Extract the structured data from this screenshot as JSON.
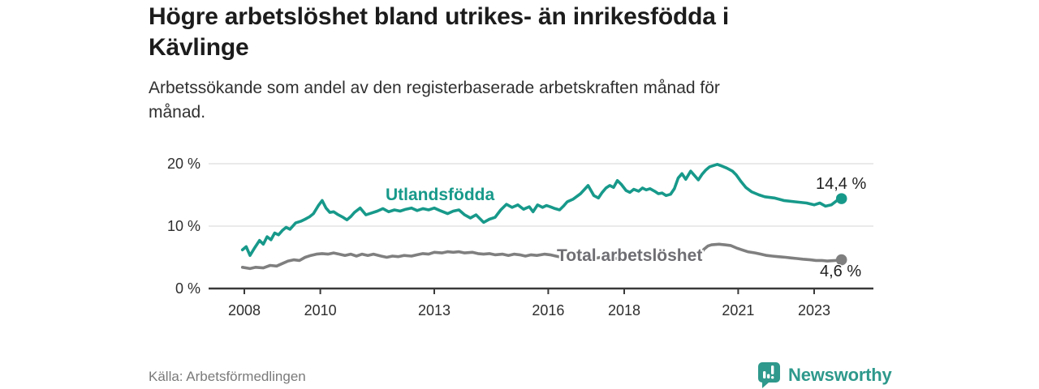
{
  "header": {
    "title_line1": "Högre arbetslöshet bland utrikes- än inrikesfödda i",
    "title_line2": "Kävlinge",
    "subtitle_line1": "Arbetssökande som andel av den registerbaserade arbetskraften månad för",
    "subtitle_line2": "månad."
  },
  "footer": {
    "source": "Källa: Arbetsförmedlingen",
    "brand_name": "Newsworthy"
  },
  "colors": {
    "foreign_line": "#17998a",
    "total_line": "#7f7f7f",
    "total_label_text": "#6e6e73",
    "axis": "#3a3a3a",
    "grid": "#e3e3e3",
    "tick_text": "#2e2e2e",
    "title_text": "#1c1c1c",
    "muted_text": "#7a7a7a",
    "brand_teal": "#2e998c"
  },
  "chart_data": {
    "type": "line",
    "title": "Högre arbetslöshet bland utrikes- än inrikesfödda i Kävlinge",
    "subtitle": "Arbetssökande som andel av den registerbaserade arbetskraften månad för månad.",
    "xlabel": "",
    "ylabel": "",
    "unit": "%",
    "grid": "horizontal",
    "legend_position": "inline-on-line",
    "x_axis": {
      "range_years": [
        2007.9,
        2024.4
      ],
      "ticks": [
        2008,
        2010,
        2013,
        2016,
        2018,
        2021,
        2023
      ],
      "tick_labels": [
        "2008",
        "2010",
        "2013",
        "2016",
        "2018",
        "2021",
        "2023"
      ]
    },
    "y_axis": {
      "range": [
        0,
        20
      ],
      "ticks": [
        0,
        10,
        20
      ],
      "tick_labels": [
        "0 %",
        "10 %",
        "20 %"
      ]
    },
    "series": [
      {
        "name": "Utlandsfödda",
        "color": "#17998a",
        "end_value": 14.4,
        "end_label": "14,4 %",
        "points": [
          [
            2007.95,
            6.2
          ],
          [
            2008.05,
            6.7
          ],
          [
            2008.15,
            5.3
          ],
          [
            2008.28,
            6.6
          ],
          [
            2008.4,
            7.7
          ],
          [
            2008.5,
            7.1
          ],
          [
            2008.6,
            8.3
          ],
          [
            2008.7,
            7.8
          ],
          [
            2008.8,
            8.9
          ],
          [
            2008.9,
            8.6
          ],
          [
            2009.0,
            9.3
          ],
          [
            2009.1,
            9.8
          ],
          [
            2009.2,
            9.5
          ],
          [
            2009.35,
            10.5
          ],
          [
            2009.5,
            10.8
          ],
          [
            2009.6,
            11.1
          ],
          [
            2009.72,
            11.5
          ],
          [
            2009.82,
            12.0
          ],
          [
            2009.95,
            13.3
          ],
          [
            2010.05,
            14.1
          ],
          [
            2010.15,
            12.9
          ],
          [
            2010.25,
            12.2
          ],
          [
            2010.35,
            12.3
          ],
          [
            2010.45,
            11.9
          ],
          [
            2010.6,
            11.4
          ],
          [
            2010.7,
            11.0
          ],
          [
            2010.8,
            11.5
          ],
          [
            2010.9,
            12.2
          ],
          [
            2011.05,
            12.9
          ],
          [
            2011.2,
            11.8
          ],
          [
            2011.35,
            12.1
          ],
          [
            2011.5,
            12.4
          ],
          [
            2011.65,
            12.8
          ],
          [
            2011.8,
            12.3
          ],
          [
            2011.95,
            12.6
          ],
          [
            2012.1,
            12.4
          ],
          [
            2012.25,
            12.7
          ],
          [
            2012.4,
            12.9
          ],
          [
            2012.55,
            12.5
          ],
          [
            2012.7,
            12.8
          ],
          [
            2012.85,
            12.6
          ],
          [
            2013.0,
            12.9
          ],
          [
            2013.15,
            12.5
          ],
          [
            2013.35,
            12.0
          ],
          [
            2013.5,
            12.4
          ],
          [
            2013.65,
            12.6
          ],
          [
            2013.8,
            11.8
          ],
          [
            2013.95,
            11.3
          ],
          [
            2014.1,
            11.8
          ],
          [
            2014.3,
            10.6
          ],
          [
            2014.45,
            11.1
          ],
          [
            2014.6,
            11.4
          ],
          [
            2014.75,
            12.6
          ],
          [
            2014.9,
            13.5
          ],
          [
            2015.05,
            13.0
          ],
          [
            2015.2,
            13.4
          ],
          [
            2015.35,
            12.7
          ],
          [
            2015.5,
            13.1
          ],
          [
            2015.6,
            12.3
          ],
          [
            2015.72,
            13.4
          ],
          [
            2015.85,
            13.0
          ],
          [
            2015.95,
            13.3
          ],
          [
            2016.05,
            13.1
          ],
          [
            2016.18,
            12.8
          ],
          [
            2016.3,
            12.6
          ],
          [
            2016.4,
            13.2
          ],
          [
            2016.5,
            13.9
          ],
          [
            2016.65,
            14.3
          ],
          [
            2016.85,
            15.2
          ],
          [
            2017.05,
            16.5
          ],
          [
            2017.2,
            14.9
          ],
          [
            2017.32,
            14.5
          ],
          [
            2017.42,
            15.4
          ],
          [
            2017.52,
            16.1
          ],
          [
            2017.62,
            16.5
          ],
          [
            2017.72,
            16.2
          ],
          [
            2017.82,
            17.3
          ],
          [
            2017.92,
            16.7
          ],
          [
            2018.05,
            15.7
          ],
          [
            2018.15,
            15.4
          ],
          [
            2018.25,
            15.9
          ],
          [
            2018.38,
            15.6
          ],
          [
            2018.48,
            16.1
          ],
          [
            2018.58,
            15.8
          ],
          [
            2018.68,
            16.0
          ],
          [
            2018.8,
            15.6
          ],
          [
            2018.9,
            15.2
          ],
          [
            2019.0,
            15.3
          ],
          [
            2019.1,
            14.9
          ],
          [
            2019.22,
            15.1
          ],
          [
            2019.32,
            16.0
          ],
          [
            2019.42,
            17.7
          ],
          [
            2019.52,
            18.4
          ],
          [
            2019.62,
            17.5
          ],
          [
            2019.75,
            18.8
          ],
          [
            2019.85,
            18.1
          ],
          [
            2019.95,
            17.4
          ],
          [
            2020.05,
            18.3
          ],
          [
            2020.15,
            19.0
          ],
          [
            2020.25,
            19.5
          ],
          [
            2020.35,
            19.7
          ],
          [
            2020.45,
            19.9
          ],
          [
            2020.58,
            19.6
          ],
          [
            2020.7,
            19.3
          ],
          [
            2020.85,
            18.8
          ],
          [
            2020.95,
            18.2
          ],
          [
            2021.08,
            17.1
          ],
          [
            2021.2,
            16.2
          ],
          [
            2021.35,
            15.5
          ],
          [
            2021.55,
            15.0
          ],
          [
            2021.7,
            14.7
          ],
          [
            2021.95,
            14.5
          ],
          [
            2022.2,
            14.1
          ],
          [
            2022.5,
            13.9
          ],
          [
            2022.8,
            13.7
          ],
          [
            2023.0,
            13.4
          ],
          [
            2023.15,
            13.7
          ],
          [
            2023.3,
            13.2
          ],
          [
            2023.45,
            13.4
          ],
          [
            2023.6,
            14.1
          ],
          [
            2023.72,
            14.4
          ]
        ]
      },
      {
        "name": "Total arbetslöshet",
        "color": "#7f7f7f",
        "end_value": 4.6,
        "end_label": "4,6 %",
        "points": [
          [
            2007.95,
            3.4
          ],
          [
            2008.15,
            3.2
          ],
          [
            2008.3,
            3.4
          ],
          [
            2008.5,
            3.3
          ],
          [
            2008.68,
            3.7
          ],
          [
            2008.85,
            3.6
          ],
          [
            2009.0,
            4.0
          ],
          [
            2009.15,
            4.4
          ],
          [
            2009.3,
            4.6
          ],
          [
            2009.45,
            4.5
          ],
          [
            2009.6,
            5.0
          ],
          [
            2009.75,
            5.3
          ],
          [
            2009.9,
            5.5
          ],
          [
            2010.05,
            5.6
          ],
          [
            2010.2,
            5.5
          ],
          [
            2010.35,
            5.7
          ],
          [
            2010.5,
            5.5
          ],
          [
            2010.65,
            5.3
          ],
          [
            2010.8,
            5.5
          ],
          [
            2010.95,
            5.2
          ],
          [
            2011.1,
            5.5
          ],
          [
            2011.25,
            5.3
          ],
          [
            2011.4,
            5.5
          ],
          [
            2011.6,
            5.2
          ],
          [
            2011.75,
            5.0
          ],
          [
            2011.9,
            5.2
          ],
          [
            2012.05,
            5.1
          ],
          [
            2012.2,
            5.3
          ],
          [
            2012.4,
            5.2
          ],
          [
            2012.55,
            5.4
          ],
          [
            2012.7,
            5.6
          ],
          [
            2012.85,
            5.5
          ],
          [
            2013.0,
            5.8
          ],
          [
            2013.2,
            5.7
          ],
          [
            2013.35,
            5.9
          ],
          [
            2013.5,
            5.8
          ],
          [
            2013.65,
            5.9
          ],
          [
            2013.8,
            5.7
          ],
          [
            2014.0,
            5.8
          ],
          [
            2014.15,
            5.6
          ],
          [
            2014.3,
            5.5
          ],
          [
            2014.45,
            5.6
          ],
          [
            2014.6,
            5.4
          ],
          [
            2014.8,
            5.5
          ],
          [
            2014.95,
            5.3
          ],
          [
            2015.1,
            5.5
          ],
          [
            2015.25,
            5.4
          ],
          [
            2015.4,
            5.2
          ],
          [
            2015.55,
            5.4
          ],
          [
            2015.7,
            5.3
          ],
          [
            2015.9,
            5.5
          ],
          [
            2016.05,
            5.4
          ],
          [
            2016.2,
            5.2
          ],
          [
            2016.35,
            5.0
          ],
          [
            2016.5,
            5.2
          ],
          [
            2016.65,
            5.1
          ],
          [
            2016.85,
            5.3
          ],
          [
            2017.0,
            5.2
          ],
          [
            2017.15,
            5.0
          ],
          [
            2017.3,
            4.9
          ],
          [
            2017.45,
            5.1
          ],
          [
            2017.6,
            5.0
          ],
          [
            2017.8,
            4.8
          ],
          [
            2017.95,
            4.9
          ],
          [
            2018.1,
            4.7
          ],
          [
            2018.25,
            4.8
          ],
          [
            2018.4,
            4.9
          ],
          [
            2018.55,
            4.8
          ],
          [
            2018.75,
            4.9
          ],
          [
            2018.9,
            4.7
          ],
          [
            2019.05,
            4.8
          ],
          [
            2019.2,
            4.9
          ],
          [
            2019.4,
            4.8
          ],
          [
            2019.55,
            4.9
          ],
          [
            2019.7,
            5.0
          ],
          [
            2019.85,
            5.1
          ],
          [
            2020.0,
            5.5
          ],
          [
            2020.1,
            6.3
          ],
          [
            2020.2,
            6.8
          ],
          [
            2020.3,
            7.0
          ],
          [
            2020.5,
            7.1
          ],
          [
            2020.65,
            7.0
          ],
          [
            2020.8,
            6.9
          ],
          [
            2020.95,
            6.5
          ],
          [
            2021.1,
            6.2
          ],
          [
            2021.25,
            5.9
          ],
          [
            2021.45,
            5.7
          ],
          [
            2021.6,
            5.5
          ],
          [
            2021.75,
            5.3
          ],
          [
            2021.9,
            5.2
          ],
          [
            2022.05,
            5.1
          ],
          [
            2022.25,
            5.0
          ],
          [
            2022.4,
            4.9
          ],
          [
            2022.55,
            4.8
          ],
          [
            2022.7,
            4.7
          ],
          [
            2022.9,
            4.6
          ],
          [
            2023.05,
            4.5
          ],
          [
            2023.2,
            4.5
          ],
          [
            2023.35,
            4.4
          ],
          [
            2023.55,
            4.5
          ],
          [
            2023.72,
            4.6
          ]
        ]
      }
    ]
  }
}
